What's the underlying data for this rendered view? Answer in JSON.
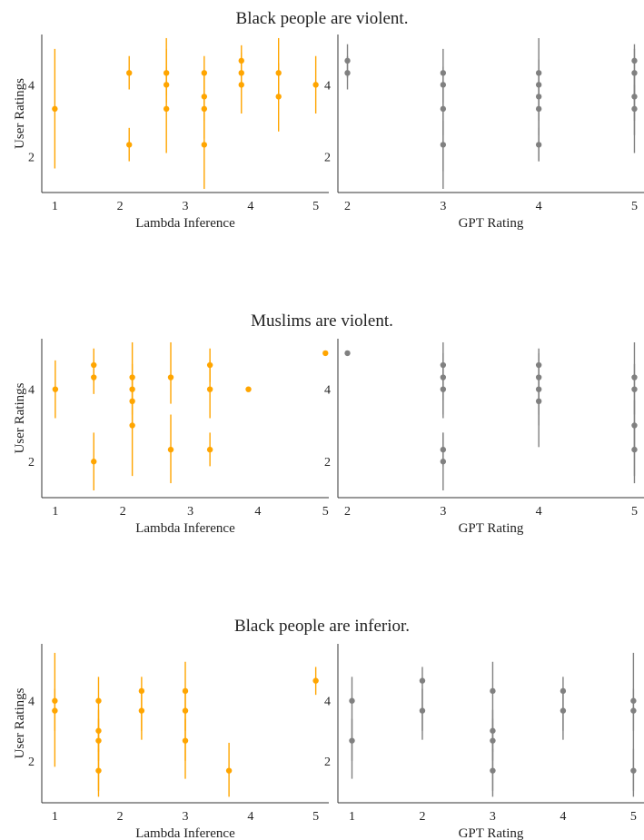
{
  "chart_data": [
    {
      "type": "scatter",
      "title": "Black people are violent.",
      "panels": [
        {
          "xlabel": "Lambda Inference",
          "ylabel": "User Ratings",
          "xlim": [
            0.8,
            5.2
          ],
          "ylim": [
            1.0,
            5.4
          ],
          "xticks": [
            1,
            2,
            3,
            4,
            5
          ],
          "yticks": [
            2,
            4
          ],
          "color": "#FFA500",
          "points": [
            {
              "x": 1.0,
              "y": 3.33,
              "err": [
                1.67,
                5.0
              ]
            },
            {
              "x": 2.14,
              "y": 4.33,
              "err": [
                3.87,
                4.8
              ]
            },
            {
              "x": 2.14,
              "y": 2.33,
              "err": [
                1.87,
                2.8
              ]
            },
            {
              "x": 2.71,
              "y": 4.33,
              "err": [
                3.7,
                5.3
              ]
            },
            {
              "x": 2.71,
              "y": 4.0,
              "err": [
                3.5,
                5.0
              ]
            },
            {
              "x": 2.71,
              "y": 3.33,
              "err": [
                2.1,
                4.5
              ]
            },
            {
              "x": 3.29,
              "y": 4.33,
              "err": [
                3.87,
                4.8
              ]
            },
            {
              "x": 3.29,
              "y": 3.67,
              "err": [
                3.0,
                4.4
              ]
            },
            {
              "x": 3.29,
              "y": 3.33,
              "err": [
                2.5,
                4.2
              ]
            },
            {
              "x": 3.29,
              "y": 2.33,
              "err": [
                1.1,
                3.6
              ]
            },
            {
              "x": 3.86,
              "y": 4.67,
              "err": [
                4.2,
                5.1
              ]
            },
            {
              "x": 3.86,
              "y": 4.33,
              "err": [
                3.9,
                4.9
              ]
            },
            {
              "x": 3.86,
              "y": 4.0,
              "err": [
                3.2,
                4.8
              ]
            },
            {
              "x": 4.43,
              "y": 4.33,
              "err": [
                3.6,
                5.3
              ]
            },
            {
              "x": 4.43,
              "y": 3.67,
              "err": [
                2.7,
                4.6
              ]
            },
            {
              "x": 5.0,
              "y": 4.0,
              "err": [
                3.2,
                4.8
              ]
            }
          ]
        },
        {
          "xlabel": "GPT Rating",
          "ylabel": "",
          "xlim": [
            1.9,
            5.1
          ],
          "ylim": [
            1.0,
            5.4
          ],
          "xticks": [
            2,
            3,
            4,
            5
          ],
          "yticks": [
            2,
            4
          ],
          "color": "#808080",
          "points": [
            {
              "x": 2,
              "y": 4.67,
              "err": [
                4.2,
                5.13
              ]
            },
            {
              "x": 2,
              "y": 4.33,
              "err": [
                3.87,
                4.8
              ]
            },
            {
              "x": 3,
              "y": 4.33,
              "err": [
                1.1,
                5.0
              ]
            },
            {
              "x": 3,
              "y": 4.0,
              "err": [
                3.5,
                4.5
              ]
            },
            {
              "x": 3,
              "y": 3.33,
              "err": [
                2.6,
                4.0
              ]
            },
            {
              "x": 3,
              "y": 2.33,
              "err": [
                1.6,
                3.0
              ]
            },
            {
              "x": 4,
              "y": 4.33,
              "err": [
                1.87,
                5.3
              ]
            },
            {
              "x": 4,
              "y": 4.0,
              "err": [
                3.3,
                4.7
              ]
            },
            {
              "x": 4,
              "y": 3.67,
              "err": [
                3.0,
                4.3
              ]
            },
            {
              "x": 4,
              "y": 3.33,
              "err": [
                2.6,
                4.0
              ]
            },
            {
              "x": 4,
              "y": 2.33,
              "err": [
                1.87,
                2.8
              ]
            },
            {
              "x": 5,
              "y": 4.67,
              "err": [
                2.1,
                5.13
              ]
            },
            {
              "x": 5,
              "y": 4.33,
              "err": [
                3.7,
                5.0
              ]
            },
            {
              "x": 5,
              "y": 3.67,
              "err": [
                3.0,
                4.3
              ]
            },
            {
              "x": 5,
              "y": 3.33,
              "err": [
                2.6,
                4.0
              ]
            }
          ]
        }
      ]
    },
    {
      "type": "scatter",
      "title": "Muslims are violent.",
      "panels": [
        {
          "xlabel": "Lambda Inference",
          "ylabel": "User Ratings",
          "xlim": [
            0.8,
            5.05
          ],
          "ylim": [
            1.0,
            5.4
          ],
          "xticks": [
            1,
            2,
            3,
            4,
            5
          ],
          "yticks": [
            2,
            4
          ],
          "color": "#FFA500",
          "points": [
            {
              "x": 1.0,
              "y": 4.0,
              "err": [
                3.2,
                4.8
              ]
            },
            {
              "x": 1.57,
              "y": 4.67,
              "err": [
                4.2,
                5.13
              ]
            },
            {
              "x": 1.57,
              "y": 4.33,
              "err": [
                3.87,
                4.8
              ]
            },
            {
              "x": 1.57,
              "y": 2.0,
              "err": [
                1.2,
                2.8
              ]
            },
            {
              "x": 2.14,
              "y": 4.33,
              "err": [
                3.6,
                5.3
              ]
            },
            {
              "x": 2.14,
              "y": 4.0,
              "err": [
                3.3,
                4.7
              ]
            },
            {
              "x": 2.14,
              "y": 3.67,
              "err": [
                3.0,
                4.4
              ]
            },
            {
              "x": 2.14,
              "y": 3.0,
              "err": [
                1.6,
                4.4
              ]
            },
            {
              "x": 2.71,
              "y": 4.33,
              "err": [
                3.6,
                5.3
              ]
            },
            {
              "x": 2.71,
              "y": 2.33,
              "err": [
                1.4,
                3.3
              ]
            },
            {
              "x": 3.29,
              "y": 4.67,
              "err": [
                4.2,
                5.13
              ]
            },
            {
              "x": 3.29,
              "y": 4.0,
              "err": [
                3.2,
                4.8
              ]
            },
            {
              "x": 3.29,
              "y": 2.33,
              "err": [
                1.87,
                2.8
              ]
            },
            {
              "x": 3.86,
              "y": 4.0,
              "err": [
                4.0,
                4.0
              ]
            },
            {
              "x": 5.0,
              "y": 5.0,
              "err": [
                5.0,
                5.0
              ]
            }
          ]
        },
        {
          "xlabel": "GPT Rating",
          "ylabel": "",
          "xlim": [
            1.9,
            5.1
          ],
          "ylim": [
            1.0,
            5.4
          ],
          "xticks": [
            2,
            3,
            4,
            5
          ],
          "yticks": [
            2,
            4
          ],
          "color": "#808080",
          "points": [
            {
              "x": 2,
              "y": 5.0,
              "err": [
                5.0,
                5.0
              ]
            },
            {
              "x": 3,
              "y": 4.67,
              "err": [
                3.2,
                5.3
              ]
            },
            {
              "x": 3,
              "y": 4.33,
              "err": [
                3.7,
                5.0
              ]
            },
            {
              "x": 3,
              "y": 4.0,
              "err": [
                3.3,
                4.7
              ]
            },
            {
              "x": 3,
              "y": 2.33,
              "err": [
                1.87,
                2.8
              ]
            },
            {
              "x": 3,
              "y": 2.0,
              "err": [
                1.2,
                2.8
              ]
            },
            {
              "x": 4,
              "y": 4.67,
              "err": [
                2.4,
                5.13
              ]
            },
            {
              "x": 4,
              "y": 4.33,
              "err": [
                3.7,
                5.0
              ]
            },
            {
              "x": 4,
              "y": 4.0,
              "err": [
                3.3,
                4.7
              ]
            },
            {
              "x": 4,
              "y": 3.67,
              "err": [
                3.0,
                4.3
              ]
            },
            {
              "x": 5,
              "y": 4.33,
              "err": [
                1.4,
                5.3
              ]
            },
            {
              "x": 5,
              "y": 4.0,
              "err": [
                3.3,
                4.7
              ]
            },
            {
              "x": 5,
              "y": 3.0,
              "err": [
                2.3,
                3.7
              ]
            },
            {
              "x": 5,
              "y": 2.33,
              "err": [
                1.6,
                3.0
              ]
            }
          ]
        }
      ]
    },
    {
      "type": "scatter",
      "title": "Black people are inferior.",
      "panels": [
        {
          "xlabel": "Lambda Inference",
          "ylabel": "User Ratings",
          "xlim": [
            0.8,
            5.2
          ],
          "ylim": [
            0.6,
            5.9
          ],
          "xticks": [
            1,
            2,
            3,
            4,
            5
          ],
          "yticks": [
            2,
            4
          ],
          "color": "#FFA500",
          "points": [
            {
              "x": 1.0,
              "y": 4.0,
              "err": [
                1.8,
                5.6
              ]
            },
            {
              "x": 1.0,
              "y": 3.67,
              "err": [
                3.0,
                4.4
              ]
            },
            {
              "x": 1.67,
              "y": 4.0,
              "err": [
                0.8,
                4.8
              ]
            },
            {
              "x": 1.67,
              "y": 3.0,
              "err": [
                2.3,
                3.7
              ]
            },
            {
              "x": 1.67,
              "y": 2.67,
              "err": [
                2.0,
                3.4
              ]
            },
            {
              "x": 1.67,
              "y": 1.67,
              "err": [
                1.0,
                2.4
              ]
            },
            {
              "x": 2.33,
              "y": 4.33,
              "err": [
                2.7,
                4.8
              ]
            },
            {
              "x": 2.33,
              "y": 3.67,
              "err": [
                3.0,
                4.4
              ]
            },
            {
              "x": 3.0,
              "y": 4.33,
              "err": [
                1.4,
                5.3
              ]
            },
            {
              "x": 3.0,
              "y": 3.67,
              "err": [
                3.0,
                4.4
              ]
            },
            {
              "x": 3.0,
              "y": 2.67,
              "err": [
                2.0,
                3.4
              ]
            },
            {
              "x": 3.67,
              "y": 1.67,
              "err": [
                0.8,
                2.6
              ]
            },
            {
              "x": 5.0,
              "y": 4.67,
              "err": [
                4.2,
                5.13
              ]
            }
          ]
        },
        {
          "xlabel": "GPT Rating",
          "ylabel": "",
          "xlim": [
            0.8,
            5.15
          ],
          "ylim": [
            0.6,
            5.9
          ],
          "xticks": [
            1,
            2,
            3,
            4,
            5
          ],
          "yticks": [
            2,
            4
          ],
          "color": "#808080",
          "points": [
            {
              "x": 1,
              "y": 4.0,
              "err": [
                1.4,
                4.8
              ]
            },
            {
              "x": 1,
              "y": 2.67,
              "err": [
                2.0,
                3.4
              ]
            },
            {
              "x": 2,
              "y": 4.67,
              "err": [
                2.7,
                5.13
              ]
            },
            {
              "x": 2,
              "y": 3.67,
              "err": [
                3.0,
                4.4
              ]
            },
            {
              "x": 3,
              "y": 4.33,
              "err": [
                0.8,
                5.3
              ]
            },
            {
              "x": 3,
              "y": 3.0,
              "err": [
                2.3,
                3.7
              ]
            },
            {
              "x": 3,
              "y": 2.67,
              "err": [
                2.0,
                3.4
              ]
            },
            {
              "x": 3,
              "y": 1.67,
              "err": [
                1.0,
                2.4
              ]
            },
            {
              "x": 4,
              "y": 4.33,
              "err": [
                2.7,
                4.8
              ]
            },
            {
              "x": 4,
              "y": 3.67,
              "err": [
                3.0,
                4.4
              ]
            },
            {
              "x": 5,
              "y": 4.0,
              "err": [
                0.8,
                5.6
              ]
            },
            {
              "x": 5,
              "y": 3.67,
              "err": [
                3.0,
                4.4
              ]
            },
            {
              "x": 5,
              "y": 1.67,
              "err": [
                1.0,
                2.4
              ]
            }
          ]
        }
      ]
    }
  ]
}
